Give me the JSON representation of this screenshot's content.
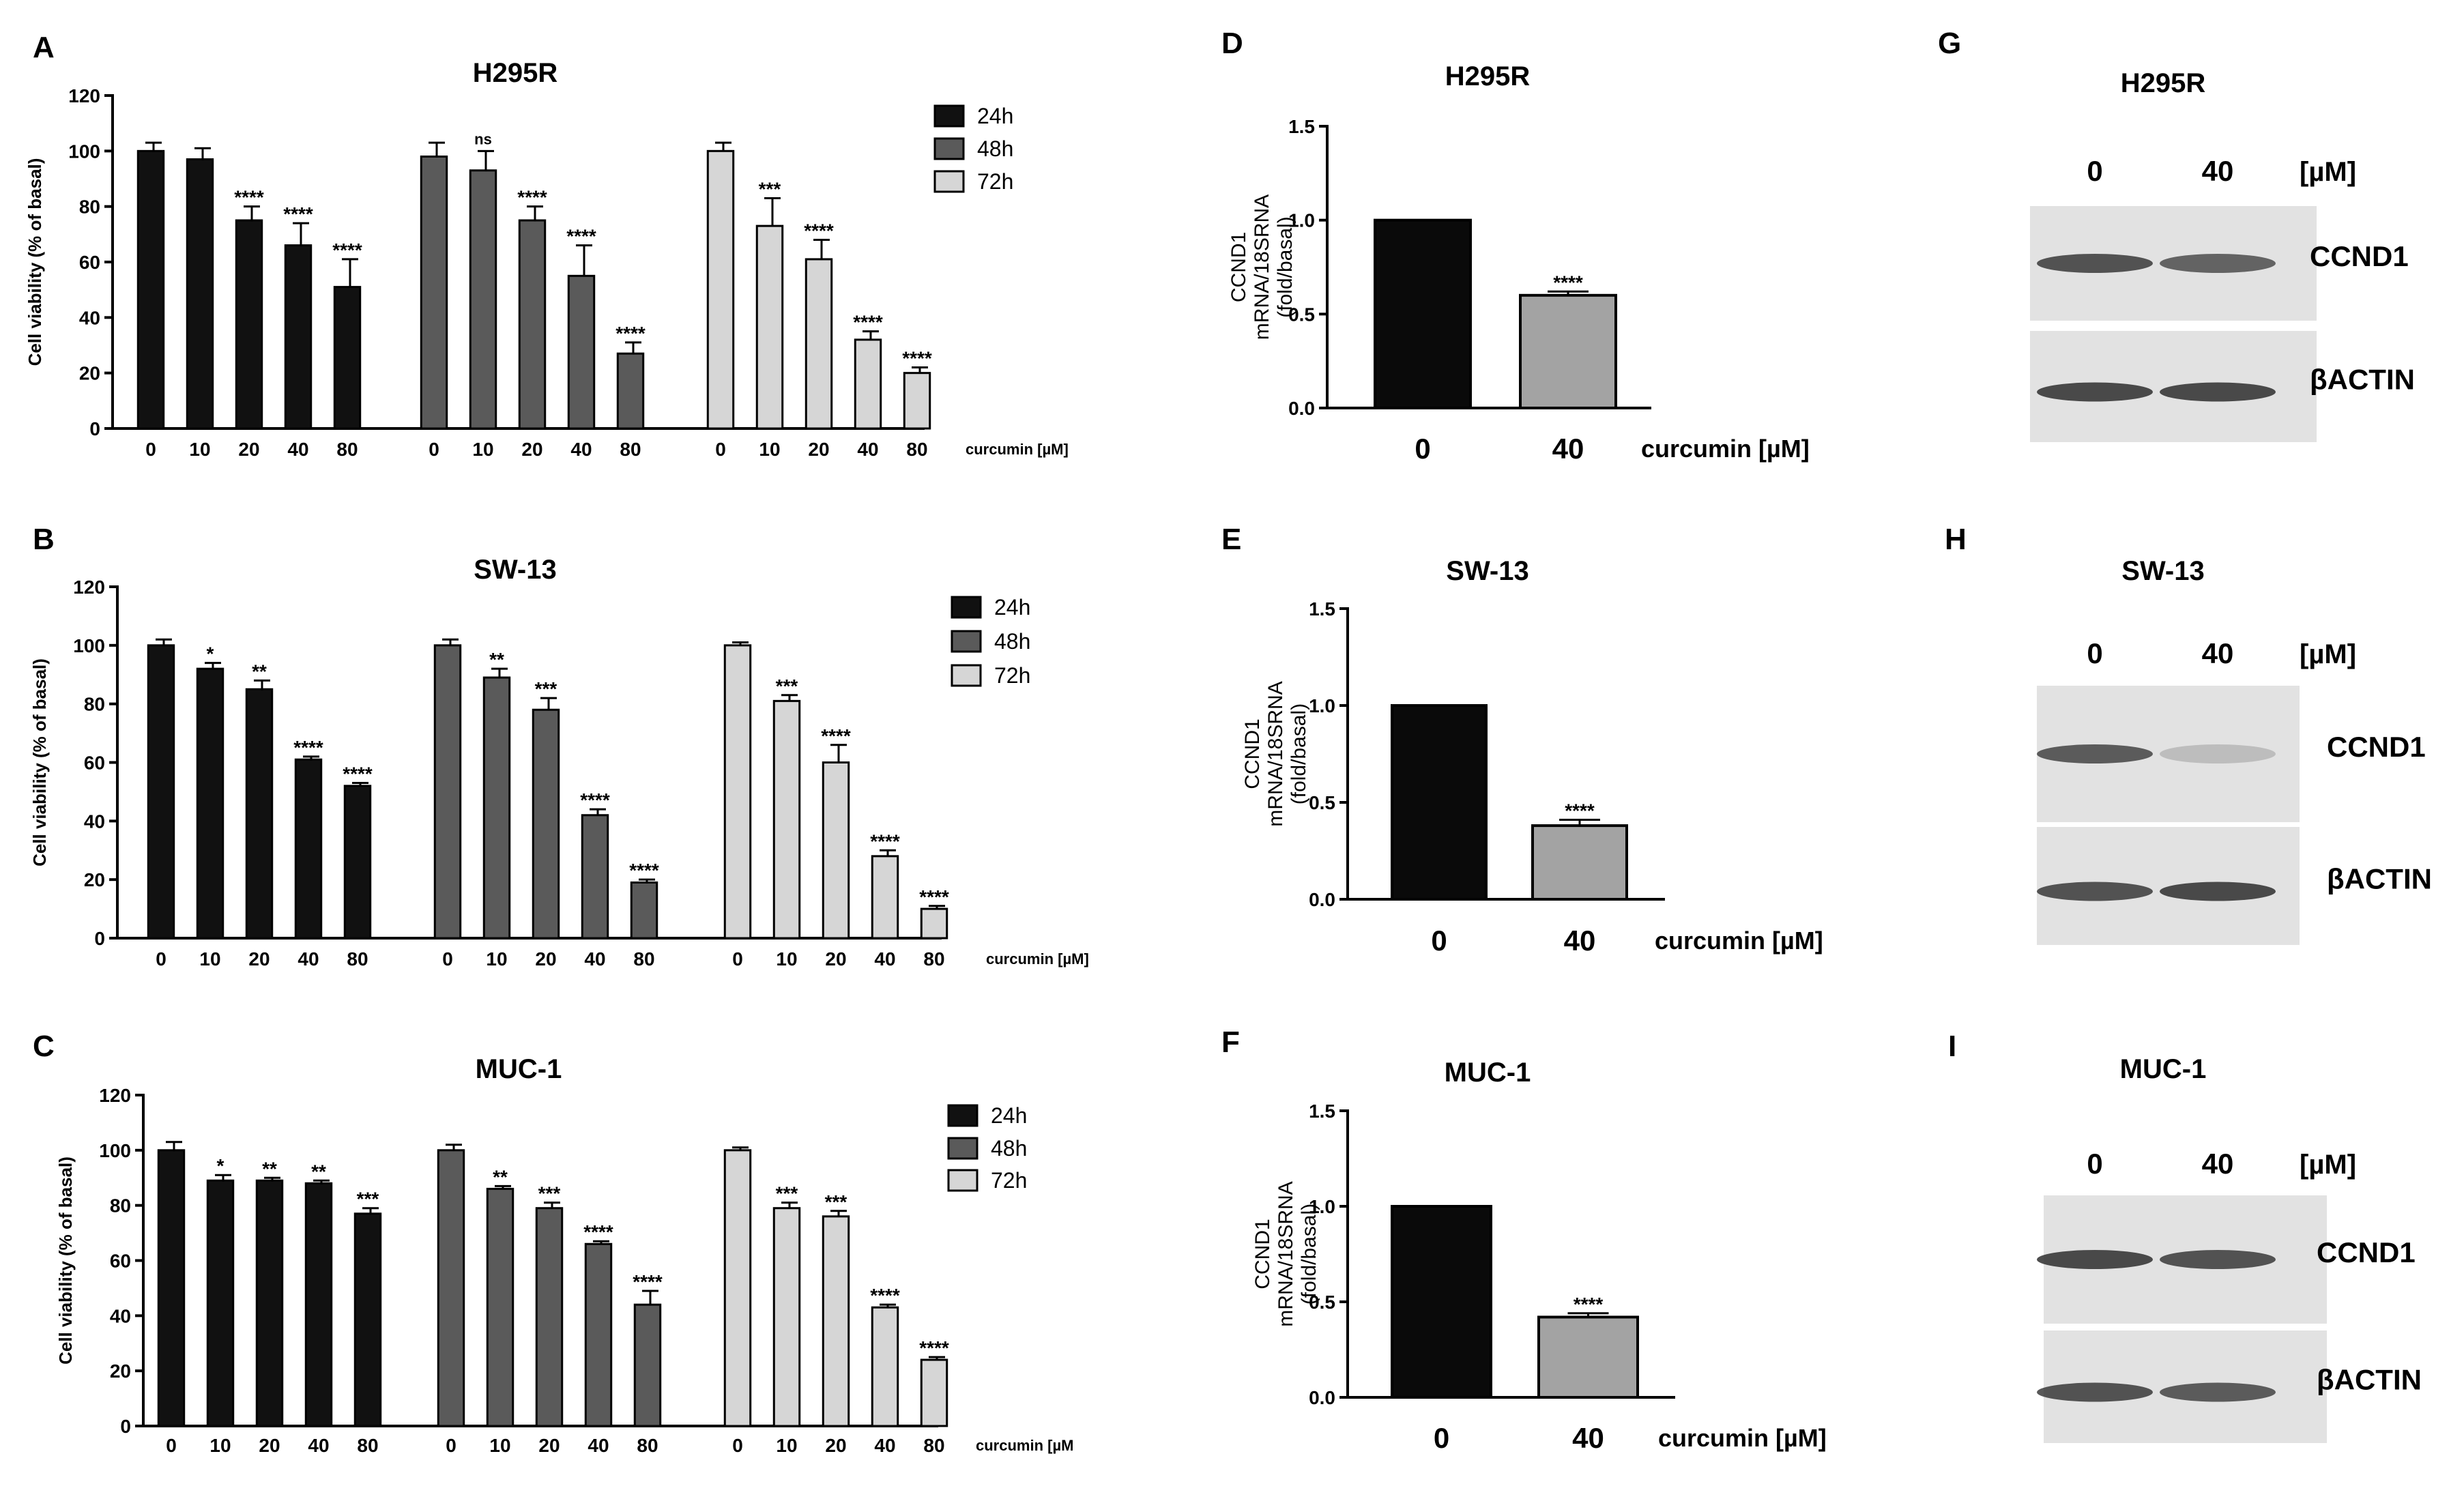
{
  "colors": {
    "h24": "#111111",
    "h48": "#5a5a5a",
    "h72": "#d6d6d6",
    "bar0": "#0a0a0a",
    "bar40": "#a3a3a3",
    "blot_bg": "#e2e2e2",
    "band": "#2e2e2e"
  },
  "chart_data": [
    {
      "panel": "A",
      "type": "bar",
      "title": "H295R",
      "ylabel": "Cell viability (% of basal)",
      "xlabel": "curcumin [µM]",
      "ylim": [
        0,
        120
      ],
      "yticks": [
        "0",
        "20",
        "40",
        "60",
        "80",
        "100",
        "120"
      ],
      "categories": [
        "0",
        "10",
        "20",
        "40",
        "80"
      ],
      "legend": [
        "24h",
        "48h",
        "72h"
      ],
      "series": [
        {
          "name": "24h",
          "values": [
            100,
            97,
            75,
            66,
            51
          ],
          "errors": [
            3,
            4,
            5,
            8,
            10
          ],
          "annotations": [
            "",
            "",
            "****",
            "****",
            "****"
          ]
        },
        {
          "name": "48h",
          "values": [
            98,
            93,
            75,
            55,
            27
          ],
          "errors": [
            5,
            7,
            5,
            11,
            4
          ],
          "annotations": [
            "",
            "ns",
            "****",
            "****",
            "****"
          ]
        },
        {
          "name": "72h",
          "values": [
            100,
            73,
            61,
            32,
            20
          ],
          "errors": [
            3,
            10,
            7,
            3,
            2
          ],
          "annotations": [
            "",
            "***",
            "****",
            "****",
            "****"
          ]
        }
      ]
    },
    {
      "panel": "B",
      "type": "bar",
      "title": "SW-13",
      "ylabel": "Cell viability (% of basal)",
      "xlabel": "curcumin [µM]",
      "ylim": [
        0,
        120
      ],
      "yticks": [
        "0",
        "20",
        "40",
        "60",
        "80",
        "100",
        "120"
      ],
      "categories": [
        "0",
        "10",
        "20",
        "40",
        "80"
      ],
      "legend": [
        "24h",
        "48h",
        "72h"
      ],
      "series": [
        {
          "name": "24h",
          "values": [
            100,
            92,
            85,
            61,
            52
          ],
          "errors": [
            2,
            2,
            3,
            1,
            1
          ],
          "annotations": [
            "",
            "*",
            "**",
            "****",
            "****"
          ]
        },
        {
          "name": "48h",
          "values": [
            100,
            89,
            78,
            42,
            19
          ],
          "errors": [
            2,
            3,
            4,
            2,
            1
          ],
          "annotations": [
            "",
            "**",
            "***",
            "****",
            "****"
          ]
        },
        {
          "name": "72h",
          "values": [
            100,
            81,
            60,
            28,
            10
          ],
          "errors": [
            1,
            2,
            6,
            2,
            1
          ],
          "annotations": [
            "",
            "***",
            "****",
            "****",
            "****"
          ]
        }
      ]
    },
    {
      "panel": "C",
      "type": "bar",
      "title": "MUC-1",
      "ylabel": "Cell viability (% of basal)",
      "xlabel": "curcumin [µM",
      "ylim": [
        0,
        120
      ],
      "yticks": [
        "0",
        "20",
        "40",
        "60",
        "80",
        "100",
        "120"
      ],
      "categories": [
        "0",
        "10",
        "20",
        "40",
        "80"
      ],
      "legend": [
        "24h",
        "48h",
        "72h"
      ],
      "series": [
        {
          "name": "24h",
          "values": [
            100,
            89,
            89,
            88,
            77
          ],
          "errors": [
            3,
            2,
            1,
            1,
            2
          ],
          "annotations": [
            "",
            "*",
            "**",
            "**",
            "***"
          ]
        },
        {
          "name": "48h",
          "values": [
            100,
            86,
            79,
            66,
            44
          ],
          "errors": [
            2,
            1,
            2,
            1,
            5
          ],
          "annotations": [
            "",
            "**",
            "***",
            "****",
            "****"
          ]
        },
        {
          "name": "72h",
          "values": [
            100,
            79,
            76,
            43,
            24
          ],
          "errors": [
            1,
            2,
            2,
            1,
            1
          ],
          "annotations": [
            "",
            "***",
            "***",
            "****",
            "****"
          ]
        }
      ]
    },
    {
      "panel": "D",
      "type": "bar",
      "title": "H295R",
      "ylabel_lines": [
        "CCND1",
        "mRNA/18SRNA",
        "(fold/basal)"
      ],
      "xlabel": "curcumin [µM]",
      "ylim": [
        0,
        1.5
      ],
      "yticks": [
        "0.0",
        "0.5",
        "1.0",
        "1.5"
      ],
      "categories": [
        "0",
        "40"
      ],
      "values": [
        1.0,
        0.6
      ],
      "errors": [
        0,
        0.02
      ],
      "annotations": [
        "",
        "****"
      ]
    },
    {
      "panel": "E",
      "type": "bar",
      "title": "SW-13",
      "ylabel_lines": [
        "CCND1",
        "mRNA/18SRNA",
        "(fold/basal)"
      ],
      "xlabel": "curcumin [µM]",
      "ylim": [
        0,
        1.5
      ],
      "yticks": [
        "0.0",
        "0.5",
        "1.0",
        "1.5"
      ],
      "categories": [
        "0",
        "40"
      ],
      "values": [
        1.0,
        0.38
      ],
      "errors": [
        0,
        0.03
      ],
      "annotations": [
        "",
        "****"
      ]
    },
    {
      "panel": "F",
      "type": "bar",
      "title": "MUC-1",
      "ylabel_lines": [
        "CCND1",
        "mRNA/18SRNA",
        "(fold/basal)"
      ],
      "xlabel": "curcumin [µM]",
      "ylim": [
        0,
        1.5
      ],
      "yticks": [
        "0.0",
        "0.5",
        "1.0",
        "1.5"
      ],
      "categories": [
        "0",
        "40"
      ],
      "values": [
        1.0,
        0.42
      ],
      "errors": [
        0,
        0.02
      ],
      "annotations": [
        "",
        "****"
      ]
    }
  ],
  "blots": [
    {
      "panel": "G",
      "title": "H295R",
      "lanes": [
        "0",
        "40"
      ],
      "unit": "[µM]",
      "rows": [
        "CCND1",
        "βACTIN"
      ],
      "band_strength": [
        [
          0.8,
          0.7
        ],
        [
          0.85,
          0.85
        ]
      ]
    },
    {
      "panel": "H",
      "title": "SW-13",
      "lanes": [
        "0",
        "40"
      ],
      "unit": "[µM]",
      "rows": [
        "CCND1",
        "βACTIN"
      ],
      "band_strength": [
        [
          0.75,
          0.2
        ],
        [
          0.8,
          0.85
        ]
      ]
    },
    {
      "panel": "I",
      "title": "MUC-1",
      "lanes": [
        "0",
        "40"
      ],
      "unit": "[µM]",
      "rows": [
        "CCND1",
        "βACTIN"
      ],
      "band_strength": [
        [
          0.85,
          0.8
        ],
        [
          0.8,
          0.75
        ]
      ]
    }
  ]
}
